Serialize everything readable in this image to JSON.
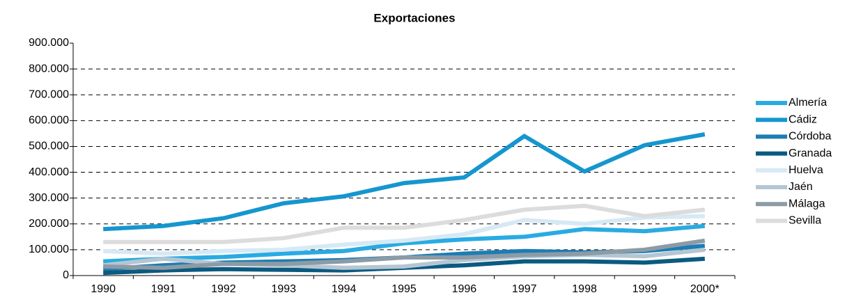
{
  "chart_data": {
    "type": "line",
    "title": "Exportaciones",
    "categories": [
      "1990",
      "1991",
      "1992",
      "1993",
      "1994",
      "1995",
      "1996",
      "1997",
      "1998",
      "1999",
      "2000*"
    ],
    "series": [
      {
        "name": "Almería",
        "color": "#29abe2",
        "values": [
          55000,
          65000,
          72000,
          85000,
          95000,
          125000,
          140000,
          150000,
          180000,
          172000,
          192000
        ]
      },
      {
        "name": "Cádiz",
        "color": "#1596cf",
        "values": [
          180000,
          192000,
          222000,
          280000,
          307000,
          358000,
          380000,
          540000,
          403000,
          505000,
          547000
        ]
      },
      {
        "name": "Córdoba",
        "color": "#1b7db5",
        "values": [
          25000,
          40000,
          50000,
          55000,
          60000,
          70000,
          85000,
          95000,
          90000,
          95000,
          115000
        ]
      },
      {
        "name": "Granada",
        "color": "#0b5a80",
        "values": [
          10000,
          20000,
          25000,
          22000,
          20000,
          30000,
          40000,
          55000,
          55000,
          50000,
          65000
        ]
      },
      {
        "name": "Huelva",
        "color": "#d6e9f5",
        "values": [
          95000,
          85000,
          95000,
          100000,
          120000,
          135000,
          160000,
          215000,
          200000,
          225000,
          230000
        ]
      },
      {
        "name": "Jaén",
        "color": "#b5c6d3",
        "values": [
          40000,
          65000,
          45000,
          40000,
          30000,
          35000,
          60000,
          75000,
          80000,
          75000,
          100000
        ]
      },
      {
        "name": "Málaga",
        "color": "#8c9ba5",
        "values": [
          35000,
          30000,
          45000,
          45000,
          55000,
          70000,
          70000,
          80000,
          85000,
          100000,
          135000
        ]
      },
      {
        "name": "Sevilla",
        "color": "#dcdcdc",
        "values": [
          130000,
          130000,
          130000,
          145000,
          185000,
          185000,
          215000,
          255000,
          270000,
          230000,
          255000
        ]
      }
    ],
    "ylim": [
      0,
      900000
    ],
    "yticks": [
      0,
      {
        "value": 100000,
        "label": "100.000"
      },
      {
        "value": 200000,
        "label": "200.000"
      },
      {
        "value": 300000,
        "label": "300.000"
      },
      {
        "value": 400000,
        "label": "400.000"
      },
      {
        "value": 500000,
        "label": "500.000"
      },
      {
        "value": 600000,
        "label": "600.000"
      },
      {
        "value": 700000,
        "label": "700.000"
      },
      {
        "value": 800000,
        "label": "800.000"
      },
      {
        "value": 900000,
        "label": "900.000"
      }
    ],
    "grid": true,
    "legend": "right"
  }
}
